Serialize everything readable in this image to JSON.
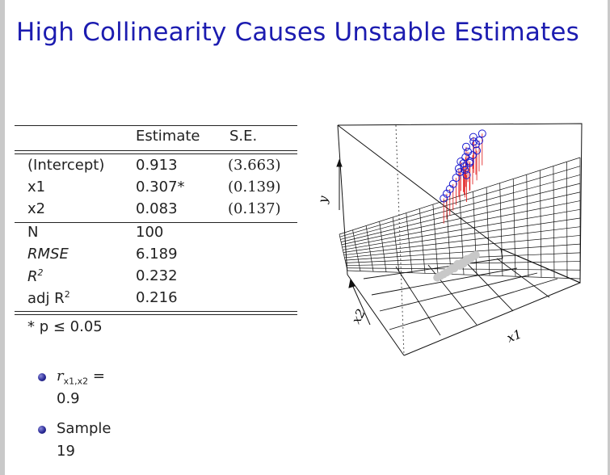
{
  "slide": {
    "title": "High Collinearity Causes Unstable Estimates"
  },
  "table": {
    "headers": [
      "Estimate",
      "S.E."
    ],
    "rows": [
      {
        "label": "(Intercept)",
        "estimate": "0.913",
        "se": "(3.663)"
      },
      {
        "label": "x1",
        "estimate": "0.307*",
        "se": "(0.139)"
      },
      {
        "label": "x2",
        "estimate": "0.083",
        "se": "(0.137)"
      }
    ],
    "stats": [
      {
        "label": "N",
        "value": "100"
      },
      {
        "label": "RMSE",
        "value": "6.189"
      },
      {
        "label": "R",
        "sup": "2",
        "value": "0.232"
      },
      {
        "label": "adj R",
        "sup": "2",
        "value": "0.216"
      }
    ],
    "footnote": "* p ≤ 0.05"
  },
  "bullets": [
    {
      "line1": "r",
      "sub": "x1,x2",
      "eq": "=",
      "line2": "0.9"
    },
    {
      "line1": "Sample",
      "line2": "19"
    }
  ],
  "plot": {
    "axes": {
      "x": "x1",
      "y": "y",
      "z": "x2"
    },
    "colors": {
      "points_3d": "#1a1ad0",
      "drop_lines": "#e01010",
      "shadow": "#c8c8c8",
      "title": "#1c1cb0"
    }
  },
  "chart_data": {
    "type": "scatter",
    "title": "",
    "xlabel": "x1",
    "ylabel": "y",
    "zlabel": "x2",
    "points": [
      {
        "x": 0.7,
        "y": 0.62,
        "z": 0.4
      },
      {
        "x": 0.72,
        "y": 0.7,
        "z": 0.45
      },
      {
        "x": 0.74,
        "y": 0.78,
        "z": 0.42
      },
      {
        "x": 0.76,
        "y": 0.66,
        "z": 0.5
      },
      {
        "x": 0.75,
        "y": 0.82,
        "z": 0.48
      },
      {
        "x": 0.78,
        "y": 0.74,
        "z": 0.52
      },
      {
        "x": 0.8,
        "y": 0.86,
        "z": 0.55
      },
      {
        "x": 0.68,
        "y": 0.58,
        "z": 0.35
      },
      {
        "x": 0.66,
        "y": 0.52,
        "z": 0.33
      },
      {
        "x": 0.64,
        "y": 0.48,
        "z": 0.3
      },
      {
        "x": 0.73,
        "y": 0.6,
        "z": 0.47
      },
      {
        "x": 0.77,
        "y": 0.7,
        "z": 0.44
      },
      {
        "x": 0.79,
        "y": 0.92,
        "z": 0.5
      },
      {
        "x": 0.82,
        "y": 0.88,
        "z": 0.58
      },
      {
        "x": 0.71,
        "y": 0.76,
        "z": 0.38
      },
      {
        "x": 0.69,
        "y": 0.66,
        "z": 0.43
      },
      {
        "x": 0.75,
        "y": 0.55,
        "z": 0.4
      },
      {
        "x": 0.81,
        "y": 0.78,
        "z": 0.52
      },
      {
        "x": 0.74,
        "y": 0.9,
        "z": 0.46
      },
      {
        "x": 0.62,
        "y": 0.44,
        "z": 0.28
      },
      {
        "x": 0.6,
        "y": 0.4,
        "z": 0.26
      },
      {
        "x": 0.78,
        "y": 0.96,
        "z": 0.56
      },
      {
        "x": 0.84,
        "y": 0.95,
        "z": 0.6
      },
      {
        "x": 0.72,
        "y": 0.64,
        "z": 0.5
      }
    ]
  }
}
